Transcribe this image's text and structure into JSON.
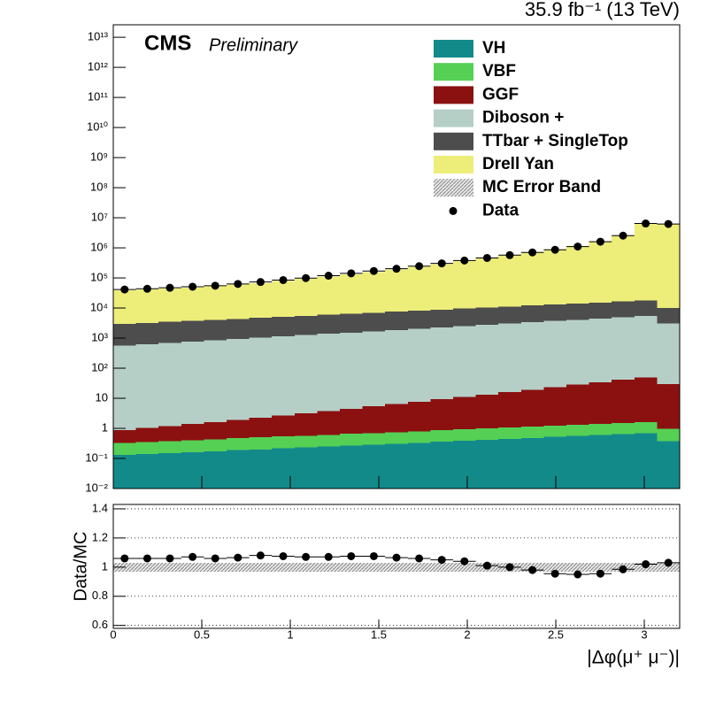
{
  "chart_data": [
    {
      "type": "histogram",
      "title": "35.9 fb⁻¹ (13 TeV)",
      "experiment": "CMS",
      "status": "Preliminary",
      "log_y": true,
      "legend": "upper right",
      "xlim": [
        0,
        3.2
      ],
      "ylim": [
        0.01,
        26000000000000
      ],
      "yticks": [
        {
          "value": 0.01,
          "label": "10⁻²"
        },
        {
          "value": 0.1,
          "label": "10⁻¹"
        },
        1,
        10,
        {
          "value": 100,
          "label": "10²"
        },
        {
          "value": 1000,
          "label": "10³"
        },
        {
          "value": 10000,
          "label": "10⁴"
        },
        {
          "value": 100000,
          "label": "10⁵"
        },
        {
          "value": 1000000,
          "label": "10⁶"
        },
        {
          "value": 10000000,
          "label": "10⁷"
        },
        {
          "value": 100000000,
          "label": "10⁸"
        },
        {
          "value": 1000000000,
          "label": "10⁹"
        },
        {
          "value": 10000000000,
          "label": "10¹⁰"
        },
        {
          "value": 100000000000,
          "label": "10¹¹"
        },
        {
          "value": 1000000000000,
          "label": "10¹²"
        },
        {
          "value": 10000000000000,
          "label": "10¹³"
        }
      ],
      "bins": [
        0,
        0.128,
        0.256,
        0.384,
        0.512,
        0.64,
        0.768,
        0.896,
        1.024,
        1.152,
        1.28,
        1.408,
        1.536,
        1.664,
        1.792,
        1.92,
        2.048,
        2.176,
        2.304,
        2.432,
        2.56,
        2.688,
        2.816,
        2.944,
        3.072,
        3.2
      ],
      "series": [
        {
          "name": "VH",
          "color": "#138a8a",
          "values": [
            0.13,
            0.14,
            0.15,
            0.16,
            0.17,
            0.19,
            0.2,
            0.22,
            0.23,
            0.25,
            0.27,
            0.29,
            0.31,
            0.33,
            0.36,
            0.39,
            0.42,
            0.45,
            0.48,
            0.52,
            0.56,
            0.6,
            0.65,
            0.7,
            0.38
          ]
        },
        {
          "name": "VBF",
          "color": "#55d055",
          "values": [
            0.2,
            0.21,
            0.23,
            0.24,
            0.26,
            0.28,
            0.3,
            0.32,
            0.34,
            0.36,
            0.39,
            0.41,
            0.44,
            0.47,
            0.5,
            0.54,
            0.57,
            0.61,
            0.66,
            0.7,
            0.75,
            0.8,
            0.85,
            0.9,
            0.6
          ]
        },
        {
          "name": "GGF",
          "color": "#8b1111",
          "values": [
            0.55,
            0.67,
            0.81,
            0.99,
            1.2,
            1.46,
            1.77,
            2.15,
            2.61,
            3.17,
            3.85,
            4.68,
            5.68,
            6.9,
            8.4,
            10.2,
            12.3,
            15,
            18.2,
            22.1,
            26.9,
            32.6,
            39.6,
            48,
            29
          ]
        },
        {
          "name": "Diboson +",
          "color": "#b5cfc7",
          "values": [
            570,
            629,
            694,
            765,
            844,
            931,
            1030,
            1130,
            1250,
            1380,
            1520,
            1680,
            1850,
            2040,
            2250,
            2480,
            2740,
            3020,
            3330,
            3680,
            4050,
            4470,
            4930,
            5450,
            3000
          ]
        },
        {
          "name": "TTbar + SingleTop",
          "color": "#4d4d4d",
          "values": [
            2400,
            2580,
            2770,
            2970,
            3200,
            3440,
            3690,
            3970,
            4260,
            4580,
            4920,
            5290,
            5680,
            6100,
            6560,
            7050,
            7570,
            8130,
            8740,
            9390,
            10100,
            10800,
            11600,
            12500,
            7000
          ]
        },
        {
          "name": "Drell Yan",
          "color": "#eded7a",
          "values": [
            36000,
            38000,
            41000,
            44000,
            48000,
            55000,
            63000,
            74000,
            87000,
            105000,
            126000,
            151000,
            182000,
            224000,
            282000,
            355000,
            447000,
            562000,
            708000,
            891000,
            1150000,
            1660000,
            2570000,
            6310000,
            6030000
          ]
        }
      ],
      "data": {
        "name": "Data",
        "color": "#000000",
        "values": [
          41300,
          43700,
          47100,
          51100,
          55200,
          63200,
          73100,
          85000,
          99000,
          118700,
          142400,
          169800,
          201800,
          246100,
          305400,
          379100,
          461900,
          573200,
          705700,
          863400,
          1106000,
          1600000,
          2548000,
          6454000,
          6221000
        ]
      }
    },
    {
      "type": "scatter",
      "xlabel": "|Δφ(μ⁺ μ⁻)|",
      "ylabel": "Data/MC",
      "grid": true,
      "color": "#000000",
      "xlim": [
        0,
        3.2
      ],
      "xticks": [
        0,
        0.5,
        1,
        1.5,
        2,
        2.5,
        3
      ],
      "ylim": [
        0.58,
        1.43
      ],
      "yticks": [
        0.6,
        0.8,
        1,
        1.2,
        1.4
      ],
      "xerr": 0.064,
      "x": [
        0.064,
        0.192,
        0.32,
        0.448,
        0.576,
        0.704,
        0.832,
        0.96,
        1.088,
        1.216,
        1.344,
        1.472,
        1.6,
        1.728,
        1.856,
        1.984,
        2.112,
        2.24,
        2.368,
        2.496,
        2.624,
        2.752,
        2.88,
        3.008,
        3.136
      ],
      "values": [
        1.06,
        1.06,
        1.06,
        1.07,
        1.06,
        1.065,
        1.08,
        1.075,
        1.07,
        1.07,
        1.075,
        1.075,
        1.065,
        1.06,
        1.05,
        1.04,
        1.01,
        1.0,
        0.98,
        0.955,
        0.95,
        0.955,
        0.985,
        1.02,
        1.03
      ],
      "band": {
        "name": "MC Error Band",
        "lower": [
          0.97,
          0.97,
          0.97,
          0.97,
          0.97,
          0.97,
          0.97,
          0.97,
          0.97,
          0.97,
          0.97,
          0.97,
          0.97,
          0.97,
          0.97,
          0.97,
          0.97,
          0.97,
          0.97,
          0.97,
          0.97,
          0.97,
          0.97,
          0.97,
          0.97
        ],
        "upper": [
          1.03,
          1.03,
          1.03,
          1.03,
          1.03,
          1.03,
          1.03,
          1.03,
          1.03,
          1.03,
          1.03,
          1.03,
          1.03,
          1.03,
          1.03,
          1.03,
          1.03,
          1.03,
          1.03,
          1.03,
          1.03,
          1.03,
          1.03,
          1.03,
          1.03
        ]
      }
    }
  ]
}
